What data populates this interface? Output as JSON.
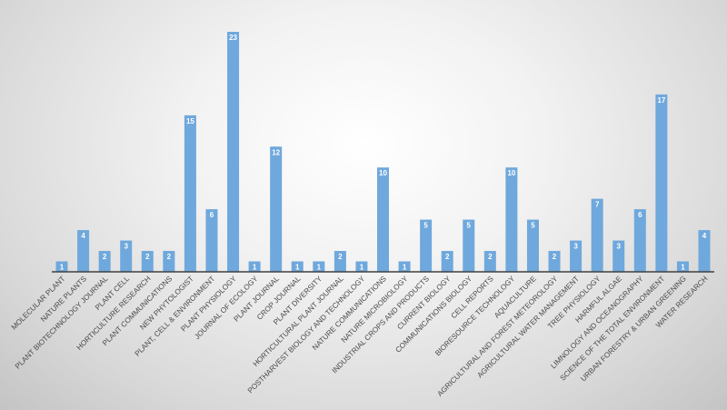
{
  "chart_data": {
    "type": "bar",
    "title": "",
    "xlabel": "",
    "ylabel": "",
    "ylim": [
      0,
      23
    ],
    "grid": false,
    "bar_color": "#6fa8dc",
    "label_color": "#ffffff",
    "categories": [
      "MOLECULAR PLANT",
      "NATURE PLANTS",
      "PLANT BIOTECHNOLOGY JOURNAL",
      "PLANT CELL",
      "HORTICULTURE RESEARCH",
      "PLANT COMMUNICATIONS",
      "NEW PHYTOLOGIST",
      "PLANT, CELL & ENVIRONMENT",
      "PLANT PHYSIOLOGY",
      "JOURNAL OF ECOLOGY",
      "PLANT JOURNAL",
      "CROP JOURNAL",
      "PLANT DIVERSITY",
      "HORTICULTURAL PLANT JOURNAL",
      "POSTHARVEST BIOLOGY AND TECHNOLOGY",
      "NATURE COMMUNICATIONS",
      "NATURE MICROBIOLOGY",
      "INDUSTRIAL CROPS AND PRODUCTS",
      "CURRENT BIOLOGY",
      "COMMUNICATIONS  BIOLOGY",
      "CELL REPORTS",
      "BIORESOURCE TECHNOLOGY",
      "AQUACULTURE",
      "AGRICULTURAL AND FOREST METEOROLOGY",
      "AGRICULTURAL WATER MANAGEMENT",
      "TREE PHYSIOLOGY",
      "HARMFUL ALGAE",
      "LIMNOLOGY AND OCEANOGRAPHY",
      "SCIENCE OF THE TOTAL ENVIRONMENT",
      "URBAN FORESTRY & URBAN GREENING",
      "WATER RESEARCH"
    ],
    "values": [
      1,
      4,
      2,
      3,
      2,
      2,
      15,
      6,
      23,
      1,
      12,
      1,
      1,
      2,
      1,
      10,
      1,
      5,
      2,
      5,
      2,
      10,
      5,
      2,
      3,
      7,
      3,
      6,
      17,
      1,
      4
    ]
  }
}
